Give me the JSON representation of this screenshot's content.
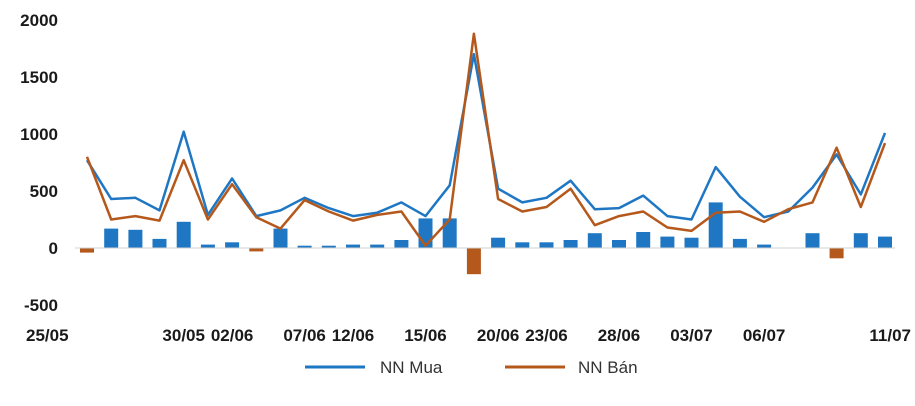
{
  "chart_data": {
    "type": "line",
    "ylim": [
      -500,
      2000
    ],
    "yticks": [
      2000,
      1500,
      1000,
      500,
      0,
      -500
    ],
    "ytick_labels": [
      "2000",
      "1500",
      "1000",
      "500",
      "0",
      "-500"
    ],
    "xtick_labels": [
      "25/05",
      "30/05",
      "02/06",
      "07/06",
      "12/06",
      "15/06",
      "20/06",
      "23/06",
      "28/06",
      "03/07",
      "06/07",
      "11/07"
    ],
    "xtick_positions": [
      0,
      4,
      6,
      9,
      11,
      14,
      17,
      19,
      22,
      25,
      28,
      31
    ],
    "grid": false,
    "legend_position": "bottom",
    "series": [
      {
        "name": "NN Mua",
        "type": "line",
        "color": "#1f77c4",
        "values": [
          770,
          430,
          440,
          330,
          1020,
          290,
          610,
          280,
          330,
          440,
          350,
          280,
          310,
          400,
          280,
          550,
          1700,
          520,
          400,
          440,
          590,
          340,
          350,
          460,
          280,
          250,
          710,
          450,
          270,
          320,
          530,
          820,
          470,
          1010
        ]
      },
      {
        "name": "NN Bán",
        "type": "line",
        "color": "#b5581b",
        "values": [
          800,
          250,
          280,
          240,
          770,
          250,
          560,
          270,
          170,
          420,
          320,
          240,
          290,
          320,
          20,
          250,
          1880,
          430,
          320,
          360,
          520,
          200,
          280,
          320,
          180,
          150,
          310,
          320,
          230,
          340,
          400,
          880,
          360,
          920
        ]
      },
      {
        "name": "",
        "type": "bar",
        "color": "#1f77c4",
        "negative_color": "#b5581b",
        "values": [
          -40,
          170,
          160,
          80,
          230,
          30,
          50,
          -30,
          170,
          20,
          20,
          30,
          30,
          70,
          260,
          260,
          -230,
          90,
          50,
          50,
          70,
          130,
          70,
          140,
          100,
          90,
          400,
          80,
          30,
          0,
          130,
          -90,
          130,
          100
        ]
      }
    ]
  }
}
